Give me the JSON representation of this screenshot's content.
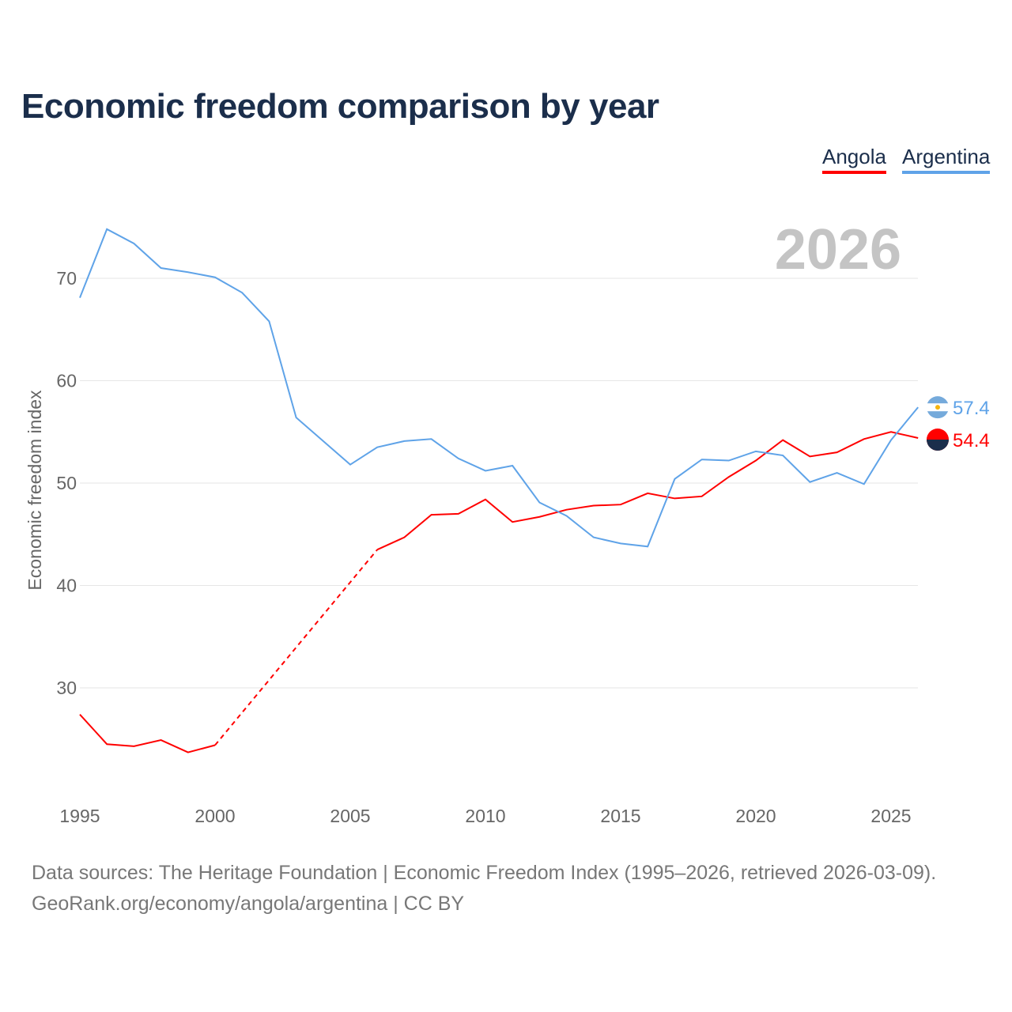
{
  "chart_data": {
    "type": "line",
    "title": "Economic freedom comparison by year",
    "ylabel": "Economic freedom index",
    "xlabel": "",
    "year_label": "2026",
    "xlim": [
      1995,
      2026
    ],
    "ylim": [
      19,
      77
    ],
    "yticks": [
      30,
      40,
      50,
      60,
      70
    ],
    "xticks": [
      1995,
      2000,
      2005,
      2010,
      2015,
      2020,
      2025
    ],
    "grid": true,
    "legend_position": "top-right",
    "x": [
      1995,
      1996,
      1997,
      1998,
      1999,
      2000,
      2001,
      2002,
      2003,
      2004,
      2005,
      2006,
      2007,
      2008,
      2009,
      2010,
      2011,
      2012,
      2013,
      2014,
      2015,
      2016,
      2017,
      2018,
      2019,
      2020,
      2021,
      2022,
      2023,
      2024,
      2025,
      2026
    ],
    "series": [
      {
        "name": "Angola",
        "color": "#ff0000",
        "end_label": "54.4",
        "values": [
          27.4,
          24.5,
          24.3,
          24.9,
          23.7,
          24.4,
          null,
          null,
          null,
          null,
          null,
          43.5,
          44.7,
          46.9,
          47.0,
          48.4,
          46.2,
          46.7,
          47.4,
          47.8,
          47.9,
          49.0,
          48.5,
          48.7,
          50.6,
          52.2,
          54.2,
          52.6,
          53.0,
          54.3,
          55.0,
          54.4
        ]
      },
      {
        "name": "Argentina",
        "color": "#5fa3e8",
        "end_label": "57.4",
        "values": [
          68.1,
          74.8,
          73.4,
          71.0,
          70.6,
          70.1,
          68.6,
          65.8,
          56.4,
          54.1,
          51.8,
          53.5,
          54.1,
          54.3,
          52.4,
          51.2,
          51.7,
          48.1,
          46.8,
          44.7,
          44.1,
          43.8,
          50.4,
          52.3,
          52.2,
          53.1,
          52.7,
          50.1,
          51.0,
          49.9,
          54.2,
          57.4
        ]
      }
    ]
  },
  "source_line1": "Data sources: The Heritage Foundation | Economic Freedom Index (1995–2026, retrieved 2026-03-09).",
  "source_line2": "GeoRank.org/economy/angola/argentina | CC BY"
}
